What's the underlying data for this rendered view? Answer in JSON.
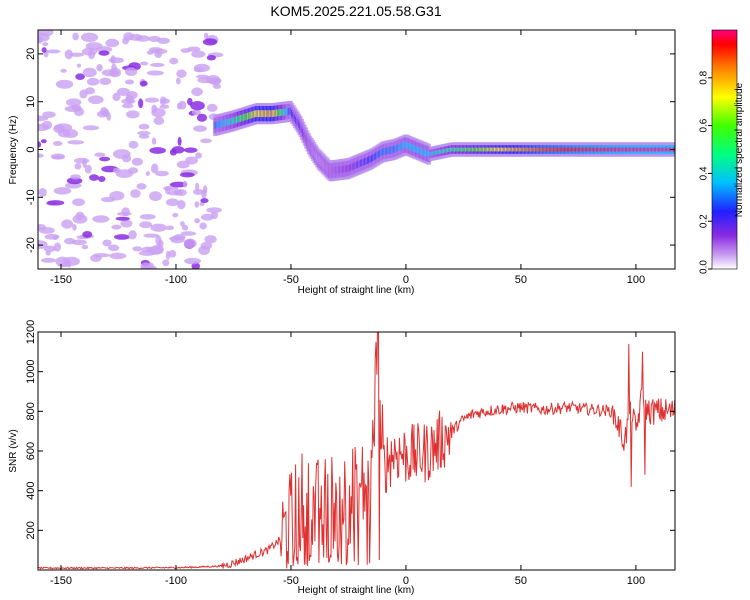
{
  "figure_title": "KOM5.2025.221.05.58.G31",
  "chart_data": [
    {
      "type": "heatmap",
      "title": "KOM5.2025.221.05.58.G31",
      "xlabel": "Height of straight line (km)",
      "ylabel": "Frequency (Hz)",
      "xlim": [
        -160,
        117
      ],
      "ylim": [
        -25,
        25
      ],
      "xticks": [
        -150,
        -100,
        -50,
        0,
        50,
        100
      ],
      "yticks": [
        -20,
        -10,
        0,
        10,
        20
      ],
      "colorbar": {
        "label": "Normalized spectral amplitude",
        "range": [
          0,
          1
        ],
        "ticks": [
          0.0,
          0.2,
          0.4,
          0.6,
          0.8
        ],
        "tick_labels": [
          "0.0",
          "0.2",
          "0.4",
          "0.6",
          "0.8"
        ],
        "colormap": [
          "#ffffff",
          "#c89cf0",
          "#8a2be2",
          "#2020ff",
          "#00c0ff",
          "#00ff80",
          "#40ff00",
          "#ffff00",
          "#ff8000",
          "#ff0000",
          "#ff0080"
        ]
      },
      "ridge": {
        "description_points_x": [
          -83,
          -75,
          -65,
          -58,
          -50,
          -46,
          -42,
          -38,
          -33,
          -25,
          -15,
          -10,
          -5,
          0,
          10,
          20,
          30,
          40,
          60,
          80,
          100,
          117
        ],
        "frequency_y": [
          5,
          6,
          7.5,
          7.5,
          8,
          5,
          1,
          -2,
          -4.5,
          -4,
          -2,
          -0.5,
          0,
          1,
          -1,
          0,
          0,
          0,
          0,
          0,
          0,
          0
        ],
        "amplitude": [
          0.35,
          0.45,
          0.7,
          0.75,
          0.3,
          0.25,
          0.15,
          0.12,
          0.15,
          0.2,
          0.3,
          0.35,
          0.35,
          0.4,
          0.4,
          0.5,
          0.6,
          0.7,
          0.85,
          0.95,
          1.0,
          1.0
        ]
      }
    },
    {
      "type": "line",
      "xlabel": "Height of straight line (km)",
      "ylabel": "SNR (v/v)",
      "xlim": [
        -160,
        117
      ],
      "ylim": [
        0,
        1200
      ],
      "xticks": [
        -150,
        -100,
        -50,
        0,
        50,
        100
      ],
      "yticks": [
        200,
        400,
        600,
        800,
        1000,
        1200
      ],
      "series": [
        {
          "name": "SNR",
          "color": "#e03030",
          "x": [
            -160,
            -140,
            -120,
            -100,
            -90,
            -80,
            -75,
            -70,
            -65,
            -60,
            -55,
            -50,
            -45,
            -40,
            -35,
            -30,
            -25,
            -20,
            -15,
            -12,
            -10,
            -5,
            0,
            5,
            10,
            15,
            20,
            25,
            30,
            40,
            50,
            60,
            70,
            80,
            90,
            95,
            98,
            100,
            103,
            105,
            110,
            117
          ],
          "y": [
            10,
            10,
            10,
            12,
            15,
            20,
            35,
            55,
            80,
            100,
            150,
            250,
            350,
            300,
            330,
            350,
            380,
            400,
            430,
            1200,
            520,
            600,
            580,
            580,
            600,
            650,
            700,
            760,
            790,
            810,
            820,
            810,
            820,
            810,
            800,
            650,
            800,
            700,
            900,
            800,
            800,
            800
          ]
        }
      ],
      "spikes": [
        {
          "x": -12,
          "y": 1200
        },
        {
          "x": -13,
          "y": 1150
        },
        {
          "x": 97,
          "y": 1140
        },
        {
          "x": 98,
          "y": 420
        },
        {
          "x": 103,
          "y": 1100
        },
        {
          "x": 104,
          "y": 480
        }
      ]
    }
  ]
}
